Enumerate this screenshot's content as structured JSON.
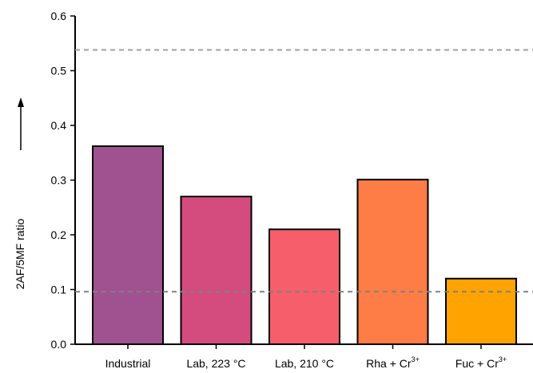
{
  "chart_data": {
    "type": "bar",
    "title": "",
    "xlabel": "",
    "ylabel": "2AF/5MF ratio",
    "ylim": [
      0,
      0.6
    ],
    "yticks": [
      "0.0",
      "0.1",
      "0.2",
      "0.3",
      "0.4",
      "0.5",
      "0.6"
    ],
    "categories": [
      {
        "label": "Industrial",
        "superscript": ""
      },
      {
        "label": "Lab, 223 °C",
        "superscript": ""
      },
      {
        "label": "Lab, 210 °C",
        "superscript": ""
      },
      {
        "label": "Rha + Cr",
        "superscript": "3+"
      },
      {
        "label": "Fuc + Cr",
        "superscript": "3+"
      }
    ],
    "values": [
      0.362,
      0.27,
      0.21,
      0.301,
      0.12
    ],
    "bar_colors": [
      "#A0518F",
      "#D44C7E",
      "#F65E6C",
      "#FE7C45",
      "#FEA300"
    ],
    "reference_lines": [
      {
        "value": 0.538,
        "color": "#a0a0a0",
        "style": "dashed"
      },
      {
        "value": 0.096,
        "color": "#808080",
        "style": "dashed"
      }
    ],
    "grid": false,
    "legend": "none"
  }
}
